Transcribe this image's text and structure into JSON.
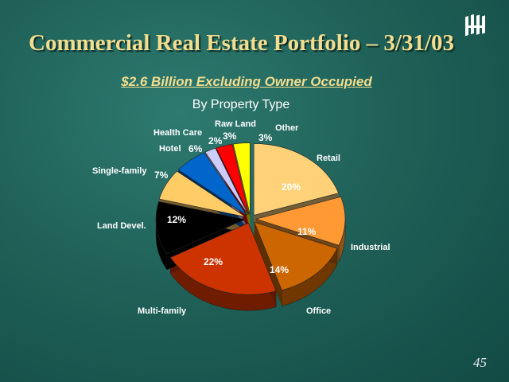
{
  "slide": {
    "title": "Commercial Real Estate Portfolio – 3/31/03",
    "subtitle": "$2.6 Billion Excluding Owner Occupied",
    "page_number": "45",
    "logo_icon": "bank-logo-icon"
  },
  "chart_data": {
    "type": "pie",
    "title": "By Property Type",
    "series": [
      {
        "name": "Retail",
        "value": 20,
        "value_label": "20%",
        "color": "#ffd27a"
      },
      {
        "name": "Industrial",
        "value": 11,
        "value_label": "11%",
        "color": "#ff9933"
      },
      {
        "name": "Office",
        "value": 14,
        "value_label": "14%",
        "color": "#cc6600"
      },
      {
        "name": "Multi-family",
        "value": 22,
        "value_label": "22%",
        "color": "#cc3300"
      },
      {
        "name": "Land Devel.",
        "value": 12,
        "value_label": "12%",
        "color": "#000000"
      },
      {
        "name": "Single-family",
        "value": 7,
        "value_label": "7%",
        "color": "#ffcc66"
      },
      {
        "name": "Hotel",
        "value": 6,
        "value_label": "6%",
        "color": "#0066cc"
      },
      {
        "name": "Health Care",
        "value": 2,
        "value_label": "2%",
        "color": "#ccccff"
      },
      {
        "name": "Raw Land",
        "value": 3,
        "value_label": "3%",
        "color": "#ff0000"
      },
      {
        "name": "Other",
        "value": 3,
        "value_label": "3%",
        "color": "#ffff00"
      }
    ]
  }
}
